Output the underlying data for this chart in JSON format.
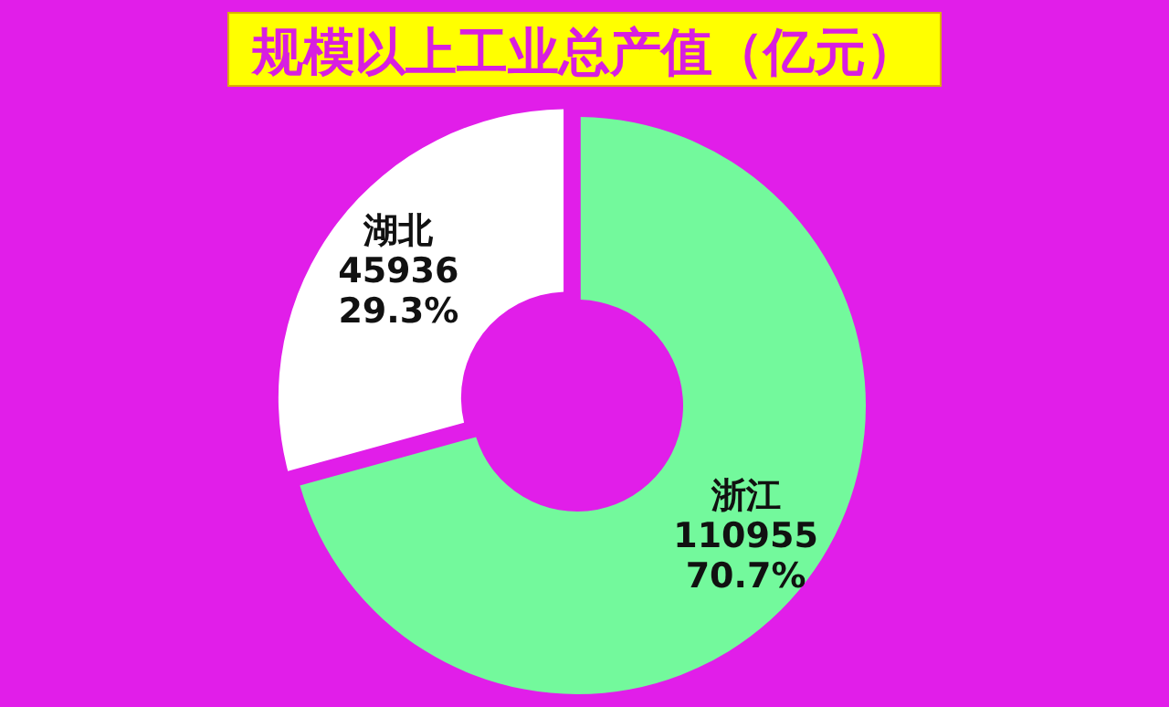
{
  "chart_data": {
    "type": "donut",
    "title": "规模以上工业总产值（亿元）",
    "categories": [
      "浙江",
      "湖北"
    ],
    "values": [
      110955,
      45936
    ],
    "colors": [
      "#73f99c",
      "#ffffff"
    ],
    "value_labels": [
      "110955 70.7%",
      "45936 29.3%"
    ]
  }
}
